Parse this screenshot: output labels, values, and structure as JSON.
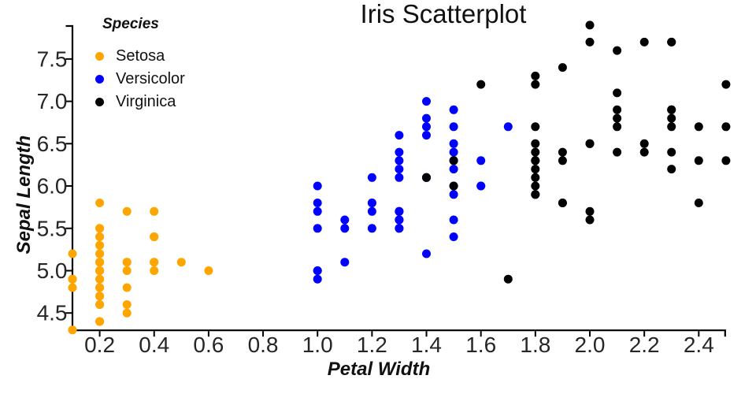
{
  "chart_data": {
    "type": "scatter",
    "title": "Iris Scatterplot",
    "xlabel": "Petal Width",
    "ylabel": "Sepal Length",
    "legend_title": "Species",
    "legend_position": "upper-left",
    "grid": false,
    "background": "#ffffff",
    "axis_color": "#000000",
    "tick_label_color": "#262626",
    "xlim": [
      0.1,
      2.5
    ],
    "ylim": [
      4.3,
      7.9
    ],
    "x_ticks": [
      0.2,
      0.4,
      0.6,
      0.8,
      1.0,
      1.2,
      1.4,
      1.6,
      1.8,
      2.0,
      2.2,
      2.4
    ],
    "y_ticks": [
      4.5,
      5.0,
      5.5,
      6.0,
      6.5,
      7.0,
      7.5
    ],
    "series": [
      {
        "name": "Setosa",
        "color": "#FFA500",
        "points": [
          [
            0.2,
            5.1
          ],
          [
            0.2,
            4.9
          ],
          [
            0.2,
            4.7
          ],
          [
            0.2,
            4.6
          ],
          [
            0.2,
            5.0
          ],
          [
            0.4,
            5.4
          ],
          [
            0.3,
            4.6
          ],
          [
            0.2,
            5.0
          ],
          [
            0.2,
            4.4
          ],
          [
            0.1,
            4.9
          ],
          [
            0.2,
            5.4
          ],
          [
            0.2,
            4.8
          ],
          [
            0.1,
            4.8
          ],
          [
            0.1,
            4.3
          ],
          [
            0.2,
            5.8
          ],
          [
            0.4,
            5.7
          ],
          [
            0.4,
            5.4
          ],
          [
            0.3,
            5.1
          ],
          [
            0.3,
            5.7
          ],
          [
            0.3,
            5.1
          ],
          [
            0.2,
            5.4
          ],
          [
            0.4,
            5.1
          ],
          [
            0.2,
            4.6
          ],
          [
            0.5,
            5.1
          ],
          [
            0.2,
            4.8
          ],
          [
            0.2,
            5.0
          ],
          [
            0.4,
            5.0
          ],
          [
            0.2,
            5.2
          ],
          [
            0.2,
            5.2
          ],
          [
            0.2,
            4.7
          ],
          [
            0.2,
            4.8
          ],
          [
            0.4,
            5.4
          ],
          [
            0.1,
            5.2
          ],
          [
            0.2,
            5.5
          ],
          [
            0.2,
            4.9
          ],
          [
            0.2,
            5.0
          ],
          [
            0.2,
            5.5
          ],
          [
            0.1,
            4.9
          ],
          [
            0.2,
            4.4
          ],
          [
            0.2,
            5.1
          ],
          [
            0.3,
            5.0
          ],
          [
            0.3,
            4.5
          ],
          [
            0.2,
            4.4
          ],
          [
            0.6,
            5.0
          ],
          [
            0.4,
            5.1
          ],
          [
            0.3,
            4.8
          ],
          [
            0.2,
            5.1
          ],
          [
            0.2,
            4.6
          ],
          [
            0.2,
            5.3
          ],
          [
            0.2,
            5.0
          ]
        ]
      },
      {
        "name": "Versicolor",
        "color": "#0000FF",
        "points": [
          [
            1.4,
            7.0
          ],
          [
            1.5,
            6.4
          ],
          [
            1.5,
            6.9
          ],
          [
            1.3,
            5.5
          ],
          [
            1.5,
            6.5
          ],
          [
            1.3,
            5.7
          ],
          [
            1.6,
            6.3
          ],
          [
            1.0,
            4.9
          ],
          [
            1.3,
            6.6
          ],
          [
            1.4,
            5.2
          ],
          [
            1.0,
            5.0
          ],
          [
            1.5,
            5.9
          ],
          [
            1.0,
            6.0
          ],
          [
            1.4,
            6.1
          ],
          [
            1.3,
            5.6
          ],
          [
            1.4,
            6.7
          ],
          [
            1.5,
            5.6
          ],
          [
            1.0,
            5.8
          ],
          [
            1.5,
            6.2
          ],
          [
            1.1,
            5.6
          ],
          [
            1.8,
            5.9
          ],
          [
            1.3,
            6.1
          ],
          [
            1.5,
            6.3
          ],
          [
            1.2,
            6.1
          ],
          [
            1.3,
            6.4
          ],
          [
            1.4,
            6.6
          ],
          [
            1.4,
            6.8
          ],
          [
            1.7,
            6.7
          ],
          [
            1.5,
            6.0
          ],
          [
            1.0,
            5.7
          ],
          [
            1.1,
            5.5
          ],
          [
            1.0,
            5.5
          ],
          [
            1.2,
            5.8
          ],
          [
            1.6,
            6.0
          ],
          [
            1.5,
            5.4
          ],
          [
            1.6,
            6.0
          ],
          [
            1.5,
            6.7
          ],
          [
            1.3,
            6.3
          ],
          [
            1.3,
            5.6
          ],
          [
            1.3,
            5.5
          ],
          [
            1.2,
            5.5
          ],
          [
            1.4,
            6.1
          ],
          [
            1.2,
            5.8
          ],
          [
            1.0,
            5.0
          ],
          [
            1.3,
            5.6
          ],
          [
            1.2,
            5.7
          ],
          [
            1.3,
            5.7
          ],
          [
            1.3,
            6.2
          ],
          [
            1.1,
            5.1
          ],
          [
            1.3,
            5.7
          ]
        ]
      },
      {
        "name": "Virginica",
        "color": "#000000",
        "points": [
          [
            2.5,
            6.3
          ],
          [
            1.9,
            5.8
          ],
          [
            2.1,
            7.1
          ],
          [
            1.8,
            6.3
          ],
          [
            2.2,
            6.5
          ],
          [
            2.1,
            7.6
          ],
          [
            1.7,
            4.9
          ],
          [
            1.8,
            7.3
          ],
          [
            1.8,
            6.7
          ],
          [
            2.5,
            7.2
          ],
          [
            2.0,
            6.5
          ],
          [
            1.9,
            6.4
          ],
          [
            2.1,
            6.8
          ],
          [
            2.0,
            5.7
          ],
          [
            2.4,
            5.8
          ],
          [
            2.3,
            6.4
          ],
          [
            1.8,
            6.5
          ],
          [
            2.2,
            7.7
          ],
          [
            2.3,
            7.7
          ],
          [
            1.5,
            6.0
          ],
          [
            2.3,
            6.9
          ],
          [
            2.0,
            5.6
          ],
          [
            2.0,
            7.7
          ],
          [
            1.8,
            6.3
          ],
          [
            2.1,
            6.7
          ],
          [
            1.8,
            7.2
          ],
          [
            1.8,
            6.2
          ],
          [
            1.8,
            6.1
          ],
          [
            2.1,
            6.4
          ],
          [
            1.6,
            7.2
          ],
          [
            1.9,
            7.4
          ],
          [
            2.0,
            7.9
          ],
          [
            2.2,
            6.4
          ],
          [
            1.5,
            6.3
          ],
          [
            1.4,
            6.1
          ],
          [
            2.3,
            7.7
          ],
          [
            2.4,
            6.3
          ],
          [
            1.8,
            6.4
          ],
          [
            1.8,
            6.0
          ],
          [
            2.1,
            6.9
          ],
          [
            2.4,
            6.7
          ],
          [
            2.3,
            6.9
          ],
          [
            1.9,
            5.8
          ],
          [
            2.3,
            6.8
          ],
          [
            2.5,
            6.7
          ],
          [
            2.3,
            6.7
          ],
          [
            1.9,
            6.3
          ],
          [
            2.0,
            6.5
          ],
          [
            2.3,
            6.2
          ],
          [
            1.8,
            5.9
          ]
        ]
      }
    ]
  }
}
